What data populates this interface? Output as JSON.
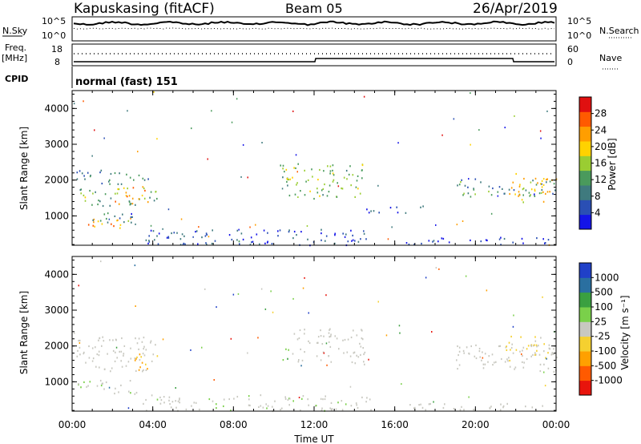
{
  "header": {
    "station": "Kapuskasing (fitACF)",
    "beam": "Beam 05",
    "date": "26/Apr/2019"
  },
  "panels": {
    "nsky": {
      "label": "N.Sky",
      "left_ticks": [
        "10^5",
        "10^0"
      ],
      "right_label": "N.Search",
      "right_ticks": [
        "10^5",
        "10^0"
      ]
    },
    "freq": {
      "label_line1": "Freq.",
      "label_line2": "[MHz]",
      "left_ticks": [
        "18",
        "8"
      ],
      "right_label": "Nave",
      "right_ticks": [
        "60",
        "0"
      ]
    },
    "cpid": {
      "label": "CPID",
      "value": "normal (fast) 151"
    }
  },
  "colors": {
    "power": [
      "#1414e8",
      "#2a4fb4",
      "#3f7a7e",
      "#4a9a5c",
      "#9acd32",
      "#ffd200",
      "#ff9e00",
      "#ff5a00",
      "#e01010"
    ],
    "velocity": [
      "#e8140c",
      "#ff5a00",
      "#ffa000",
      "#f5d030",
      "#c8c8c0",
      "#7ad04a",
      "#3aa040",
      "#2a6fa0",
      "#2040c8"
    ]
  },
  "chart_data": [
    {
      "type": "heatmap",
      "name": "power",
      "ylabel": "Slant Range [km]",
      "xlabel": "",
      "colorbar_label": "Power [dB]",
      "colorbar_ticks": [
        "28",
        "24",
        "20",
        "16",
        "12",
        "8",
        "4"
      ],
      "colorbar_range": [
        0,
        32
      ],
      "xlim": [
        "00:00",
        "24:00"
      ],
      "ylim": [
        180,
        4500
      ],
      "y_ticks": [
        "4000",
        "3000",
        "2000",
        "1000"
      ],
      "regions": [
        {
          "t0": 0.2,
          "t1": 4.2,
          "r0": 1300,
          "r1": 1800,
          "level": 14
        },
        {
          "t0": 2.0,
          "t1": 3.8,
          "r0": 1350,
          "r1": 1850,
          "level": 22
        },
        {
          "t0": 0.2,
          "t1": 3.9,
          "r0": 1900,
          "r1": 2300,
          "level": 9
        },
        {
          "t0": 0.2,
          "t1": 3.2,
          "r0": 680,
          "r1": 950,
          "level": 22
        },
        {
          "t0": 0.5,
          "t1": 3.0,
          "r0": 800,
          "r1": 1100,
          "level": 8
        },
        {
          "t0": 3.5,
          "t1": 14.8,
          "r0": 200,
          "r1": 650,
          "level": 6
        },
        {
          "t0": 10.3,
          "t1": 14.5,
          "r0": 1500,
          "r1": 2500,
          "level": 14
        },
        {
          "t0": 14.5,
          "t1": 17.5,
          "r0": 1100,
          "r1": 1300,
          "level": 6
        },
        {
          "t0": 16.5,
          "t1": 24.0,
          "r0": 220,
          "r1": 420,
          "level": 4
        },
        {
          "t0": 19.0,
          "t1": 24.0,
          "r0": 1550,
          "r1": 2050,
          "level": 10
        },
        {
          "t0": 21.5,
          "t1": 24.0,
          "r0": 1400,
          "r1": 2200,
          "level": 20
        }
      ]
    },
    {
      "type": "heatmap",
      "name": "velocity",
      "ylabel": "Slant Range [km]",
      "xlabel": "Time UT",
      "colorbar_label": "Velocity [m s⁻¹]",
      "colorbar_ticks": [
        "1000",
        "500",
        "100",
        "25",
        "-25",
        "-100",
        "-500",
        "-1000"
      ],
      "colorbar_range": [
        -1200,
        1200
      ],
      "xlim": [
        "00:00",
        "24:00"
      ],
      "x_ticks": [
        "00:00",
        "04:00",
        "08:00",
        "12:00",
        "16:00",
        "20:00",
        "00:00"
      ],
      "ylim": [
        180,
        4500
      ],
      "y_ticks": [
        "4000",
        "3000",
        "2000",
        "1000"
      ],
      "regions": [
        {
          "t0": 0.2,
          "t1": 4.2,
          "r0": 1300,
          "r1": 2300,
          "level": 0
        },
        {
          "t0": 3.0,
          "t1": 4.2,
          "r0": 1300,
          "r1": 1800,
          "level": -400
        },
        {
          "t0": 0.2,
          "t1": 3.2,
          "r0": 680,
          "r1": 1100,
          "level": 60
        },
        {
          "t0": 3.5,
          "t1": 14.8,
          "r0": 200,
          "r1": 650,
          "level": 40
        },
        {
          "t0": 10.3,
          "t1": 10.9,
          "r0": 1600,
          "r1": 2000,
          "level": 300
        },
        {
          "t0": 10.9,
          "t1": 14.5,
          "r0": 1500,
          "r1": 2500,
          "level": 0
        },
        {
          "t0": 16.5,
          "t1": 24.0,
          "r0": 220,
          "r1": 420,
          "level": 0
        },
        {
          "t0": 19.0,
          "t1": 24.0,
          "r0": 1300,
          "r1": 2050,
          "level": 0
        },
        {
          "t0": 21.5,
          "t1": 24.0,
          "r0": 1600,
          "r1": 2300,
          "level": -150
        }
      ]
    }
  ]
}
